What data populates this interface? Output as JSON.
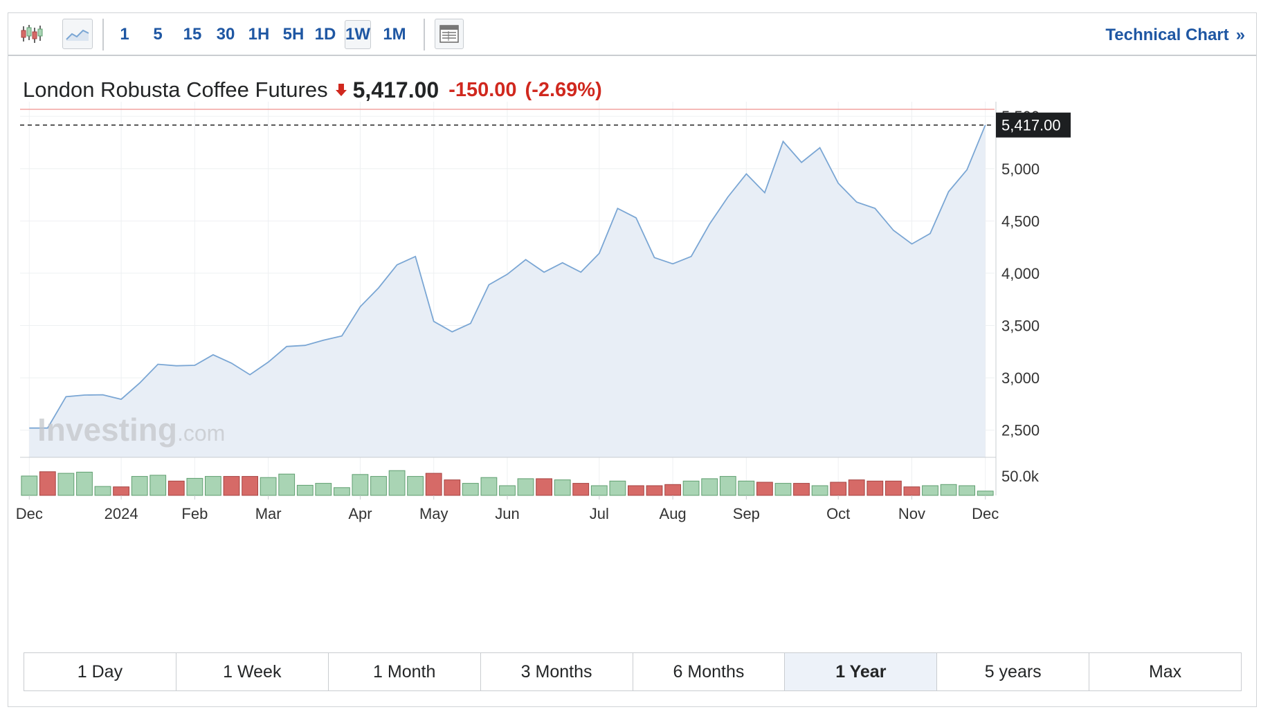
{
  "toolbar": {
    "candlestick_icon": "candlestick-icon",
    "area_icon": "area-chart-icon",
    "intervals": [
      {
        "label": "1",
        "active": false
      },
      {
        "label": "5",
        "active": false
      },
      {
        "label": "15",
        "active": false
      },
      {
        "label": "30",
        "active": false
      },
      {
        "label": "1H",
        "active": false
      },
      {
        "label": "5H",
        "active": false
      },
      {
        "label": "1D",
        "active": false
      },
      {
        "label": "1W",
        "active": true
      },
      {
        "label": "1M",
        "active": false
      }
    ],
    "table_icon": "table-view-icon",
    "technical_chart_label": "Technical Chart",
    "technical_chart_arrow": "»"
  },
  "instrument": {
    "name": "London Robusta Coffee Futures",
    "direction_icon": "down-arrow-icon",
    "price": "5,417.00",
    "change": "-150.00",
    "change_pct": "(-2.69%)"
  },
  "watermark": {
    "brand": "Investing",
    "suffix": ".com"
  },
  "colors": {
    "line": "#7aa6d4",
    "area_fill": "#e8eef6",
    "vol_up": "#a9d4b4",
    "vol_up_border": "#5f9e6f",
    "vol_down": "#d66a67",
    "vol_down_border": "#a64341",
    "price_down": "#d0281e",
    "link": "#1f57a3",
    "prev_close_line": "#f2a3a0"
  },
  "chart_data": {
    "type": "area",
    "y_ticks": [
      "5,500",
      "5,000",
      "4,500",
      "4,000",
      "3,500",
      "3,000",
      "2,500"
    ],
    "y_tick_values": [
      5500,
      5000,
      4500,
      4000,
      3500,
      3000,
      2500
    ],
    "ylim": [
      2240,
      5640
    ],
    "x_ticks": [
      "Dec",
      "2024",
      "Feb",
      "Mar",
      "Apr",
      "May",
      "Jun",
      "Jul",
      "Aug",
      "Sep",
      "Oct",
      "Nov",
      "Dec"
    ],
    "x_tick_index": [
      0.5,
      5.5,
      9.5,
      13.5,
      18.5,
      22.5,
      26.5,
      31.5,
      35.5,
      39.5,
      44.5,
      48.5,
      52.5
    ],
    "last_price_label": "5,417.00",
    "last_price": 5417,
    "prev_close": 5567,
    "grid": true,
    "series": [
      {
        "values": [
          2520,
          2520,
          2820,
          2835,
          2838,
          2795,
          2950,
          3130,
          3115,
          3120,
          3220,
          3140,
          3030,
          3150,
          3300,
          3310,
          3360,
          3400,
          3680,
          3860,
          4080,
          4160,
          3540,
          3440,
          3520,
          3890,
          3990,
          4130,
          4010,
          4100,
          4010,
          4190,
          4620,
          4530,
          4150,
          4090,
          4160,
          4470,
          4730,
          4950,
          4770,
          5260,
          5060,
          5200,
          4860,
          4680,
          4620,
          4410,
          4280,
          4380,
          4780,
          4990,
          5417
        ]
      }
    ],
    "volume": {
      "tick_label": "50.0k",
      "tick_value": 50000,
      "max": 75000,
      "values": [
        50000,
        61000,
        57000,
        60000,
        23000,
        22000,
        49000,
        52000,
        37000,
        44000,
        49000,
        49000,
        49000,
        46000,
        55000,
        26000,
        31000,
        20000,
        54000,
        49000,
        64000,
        49000,
        57000,
        40000,
        31000,
        46000,
        25000,
        43000,
        43000,
        40000,
        31000,
        25000,
        37000,
        25000,
        25000,
        28000,
        37000,
        43000,
        49000,
        37000,
        34000,
        31000,
        31000,
        25000,
        34000,
        40000,
        37000,
        37000,
        22000,
        25000,
        28000,
        25000,
        11000
      ],
      "up": [
        true,
        false,
        true,
        true,
        true,
        false,
        true,
        true,
        false,
        true,
        true,
        false,
        false,
        true,
        true,
        true,
        true,
        true,
        true,
        true,
        true,
        true,
        false,
        false,
        true,
        true,
        true,
        true,
        false,
        true,
        false,
        true,
        true,
        false,
        false,
        false,
        true,
        true,
        true,
        true,
        false,
        true,
        false,
        true,
        false,
        false,
        false,
        false,
        false,
        true,
        true,
        true,
        true
      ]
    }
  },
  "ranges": [
    {
      "label": "1 Day",
      "active": false
    },
    {
      "label": "1 Week",
      "active": false
    },
    {
      "label": "1 Month",
      "active": false
    },
    {
      "label": "3 Months",
      "active": false
    },
    {
      "label": "6 Months",
      "active": false
    },
    {
      "label": "1 Year",
      "active": true
    },
    {
      "label": "5 years",
      "active": false
    },
    {
      "label": "Max",
      "active": false
    }
  ]
}
